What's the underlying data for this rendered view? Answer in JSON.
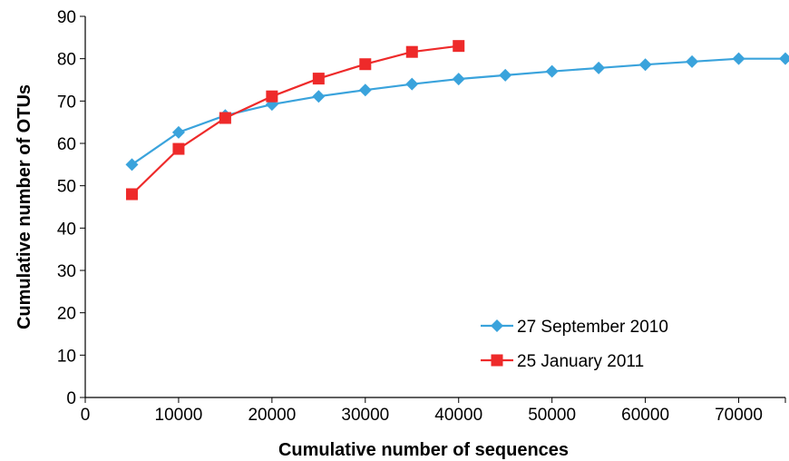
{
  "chart_data": {
    "type": "line",
    "title": "",
    "xlabel": "Cumulative number of sequences",
    "ylabel": "Cumulative number of OTUs",
    "xlim": [
      0,
      75000
    ],
    "ylim": [
      0,
      90
    ],
    "xticks": [
      0,
      10000,
      20000,
      30000,
      40000,
      50000,
      60000,
      70000
    ],
    "yticks": [
      0,
      10,
      20,
      30,
      40,
      50,
      60,
      70,
      80,
      90
    ],
    "grid": false,
    "legend_position": "bottom-right",
    "series": [
      {
        "name": "27 September 2010",
        "color": "#3aa3dc",
        "marker": "diamond",
        "x": [
          5000,
          10000,
          15000,
          20000,
          25000,
          30000,
          35000,
          40000,
          45000,
          50000,
          55000,
          60000,
          65000,
          70000,
          75000
        ],
        "y": [
          55,
          62.6,
          66.6,
          69.2,
          71.1,
          72.6,
          74.0,
          75.2,
          76.1,
          77.0,
          77.8,
          78.6,
          79.3,
          80.0,
          80.0
        ]
      },
      {
        "name": "25 January 2011",
        "color": "#ee2a2a",
        "marker": "square",
        "x": [
          5000,
          10000,
          15000,
          20000,
          25000,
          30000,
          35000,
          40000
        ],
        "y": [
          48,
          58.7,
          66.0,
          71.1,
          75.3,
          78.7,
          81.6,
          83.0
        ]
      }
    ]
  }
}
